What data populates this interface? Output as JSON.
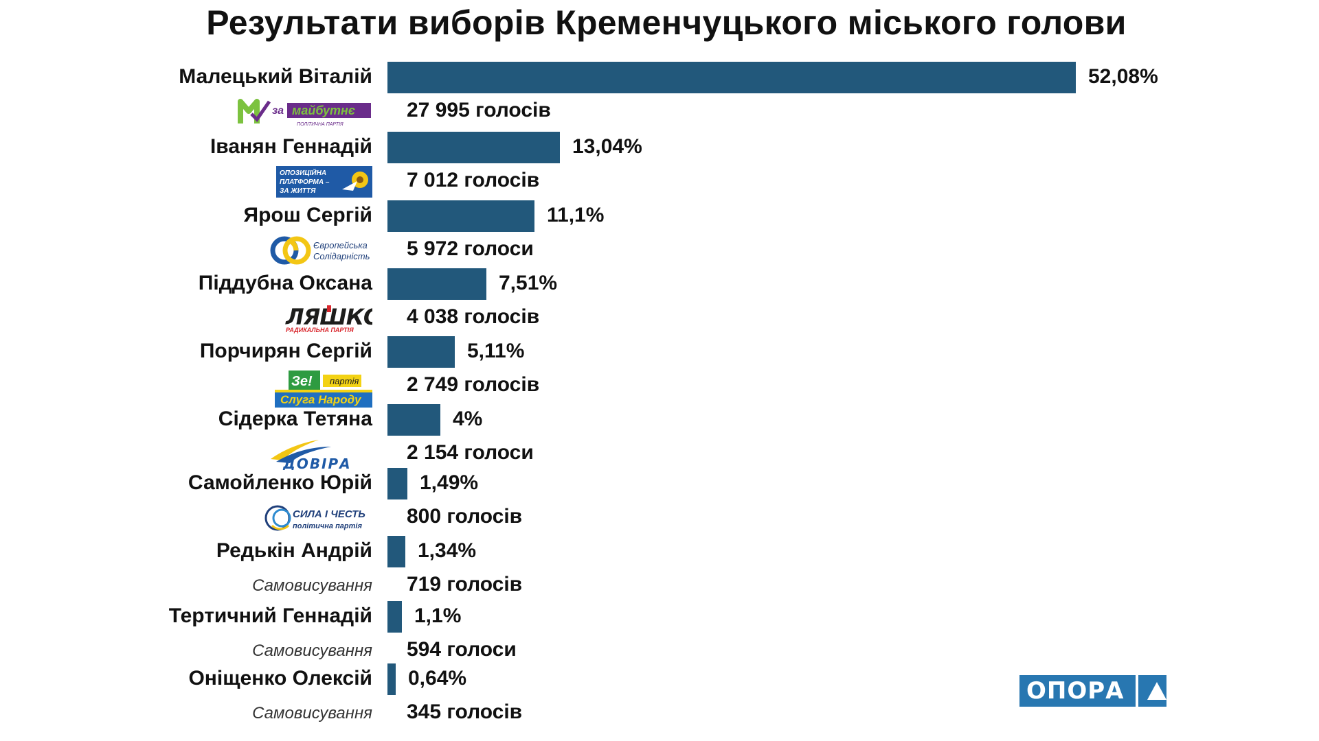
{
  "chart_data": {
    "type": "bar",
    "orientation": "horizontal",
    "title": "Результати виборів Кременчуцького міського голови",
    "bar_color": "#22587b",
    "xlim": [
      0,
      52.08
    ],
    "categories": [
      "Малецький Віталій",
      "Іванян Геннадій",
      "Ярош Сергій",
      "Піддубна Оксана",
      "Порчирян Сергій",
      "Сідерка Тетяна",
      "Самойленко Юрій",
      "Редькін Андрій",
      "Тертичний Геннадій",
      "Оніщенко Олексій"
    ],
    "values": [
      52.08,
      13.04,
      11.1,
      7.51,
      5.11,
      4,
      1.49,
      1.34,
      1.1,
      0.64
    ],
    "value_labels": [
      "52,08%",
      "13,04%",
      "11,1%",
      "7,51%",
      "5,11%",
      "4%",
      "1,49%",
      "1,34%",
      "1,1%",
      "0,64%"
    ],
    "votes": [
      27995,
      7012,
      5972,
      4038,
      2749,
      2154,
      800,
      719,
      594,
      345
    ],
    "vote_labels": [
      "27 995 голосів",
      "7 012 голосів",
      "5 972 голоси",
      "4 038 голосів",
      "2 749 голосів",
      "2 154 голоси",
      "800 голосів",
      "719 голосів",
      "594 голоси",
      "345 голосів"
    ],
    "parties": [
      {
        "type": "logo",
        "icon": "za-maibutne-logo",
        "text": "за майбутнє"
      },
      {
        "type": "logo",
        "icon": "opzzh-logo",
        "text": "ОПОЗИЦІЙНА ПЛАТФОРМА – ЗА ЖИТТЯ"
      },
      {
        "type": "logo",
        "icon": "yevropeiska-solidarnist-logo",
        "text": "Європейська Солідарність"
      },
      {
        "type": "logo",
        "icon": "liashko-radykalna-partiia-logo",
        "text": "ЛЯШКО РАДИКАЛЬНА ПАРТІЯ"
      },
      {
        "type": "logo",
        "icon": "sluha-narodu-logo",
        "text": "Зе! партія Слуга Народу"
      },
      {
        "type": "logo",
        "icon": "dovira-logo",
        "text": "ДОВІРА"
      },
      {
        "type": "logo",
        "icon": "syla-i-chest-logo",
        "text": "СИЛА І ЧЕСТЬ політична партія"
      },
      {
        "type": "text",
        "text": "Самовисування"
      },
      {
        "type": "text",
        "text": "Самовисування"
      },
      {
        "type": "text",
        "text": "Самовисування"
      }
    ]
  },
  "brand": {
    "text": "ОПОРА",
    "icon": "opora-triangle-icon",
    "color": "#2877b1"
  }
}
